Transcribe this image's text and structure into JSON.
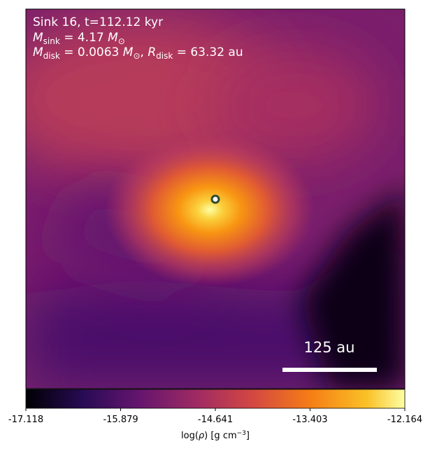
{
  "chart_data": {
    "type": "image",
    "annotations": {
      "line1": "Sink 16, t=112.12 kyr",
      "line2": [
        "M",
        "sink",
        " = 4.17 ",
        "M",
        "⊙"
      ],
      "line3": [
        "M",
        "disk",
        " = 0.0063 ",
        "M",
        "⊙",
        ", ",
        "R",
        "disk",
        " = 63.32 au"
      ]
    },
    "scale_bar": "125 au",
    "colorbar": {
      "label": [
        "log(",
        "ρ",
        ") [g cm",
        "−3",
        "]"
      ],
      "clim": [
        -17.118,
        -12.164
      ],
      "ticks": [
        -17.118,
        -15.879,
        -14.641,
        -13.403,
        -12.164
      ]
    }
  }
}
